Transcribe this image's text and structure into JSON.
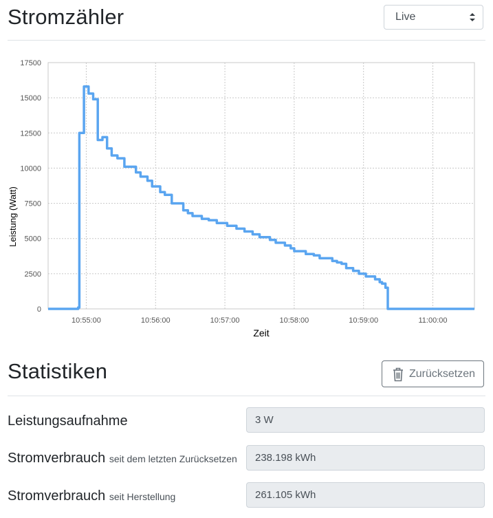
{
  "header": {
    "title": "Stromzähler",
    "mode_select": {
      "value": "Live"
    }
  },
  "chart_data": {
    "type": "line",
    "xlabel": "Zeit",
    "ylabel": "Leistung (Watt)",
    "y_ticks": [
      "0",
      "2500",
      "5000",
      "7500",
      "10000",
      "12500",
      "15000",
      "17500"
    ],
    "x_ticks": [
      "10:55:00",
      "10:56:00",
      "10:57:00",
      "10:58:00",
      "10:59:00",
      "11:00:00"
    ],
    "ylim": [
      0,
      17500
    ],
    "xlim": [
      "10:54:27",
      "11:00:36"
    ],
    "grid": true,
    "series": [
      {
        "color": "#5aa5f0",
        "step": true,
        "points": [
          [
            "10:54:27",
            0
          ],
          [
            "10:54:53",
            100
          ],
          [
            "10:54:54",
            12500
          ],
          [
            "10:54:58",
            15800
          ],
          [
            "10:55:02",
            15300
          ],
          [
            "10:55:06",
            14900
          ],
          [
            "10:55:10",
            12000
          ],
          [
            "10:55:14",
            12200
          ],
          [
            "10:55:18",
            11400
          ],
          [
            "10:55:22",
            10900
          ],
          [
            "10:55:27",
            10700
          ],
          [
            "10:55:33",
            10100
          ],
          [
            "10:55:43",
            9700
          ],
          [
            "10:55:47",
            9400
          ],
          [
            "10:55:53",
            9100
          ],
          [
            "10:55:57",
            8700
          ],
          [
            "10:56:04",
            8300
          ],
          [
            "10:56:08",
            8100
          ],
          [
            "10:56:14",
            7500
          ],
          [
            "10:56:24",
            7000
          ],
          [
            "10:56:28",
            6800
          ],
          [
            "10:56:32",
            6600
          ],
          [
            "10:56:40",
            6400
          ],
          [
            "10:56:46",
            6300
          ],
          [
            "10:56:53",
            6100
          ],
          [
            "10:57:02",
            5900
          ],
          [
            "10:57:10",
            5700
          ],
          [
            "10:57:17",
            5500
          ],
          [
            "10:57:24",
            5300
          ],
          [
            "10:57:30",
            5100
          ],
          [
            "10:57:39",
            4900
          ],
          [
            "10:57:44",
            4700
          ],
          [
            "10:57:52",
            4500
          ],
          [
            "10:57:57",
            4300
          ],
          [
            "10:58:00",
            4100
          ],
          [
            "10:58:10",
            3900
          ],
          [
            "10:58:17",
            3800
          ],
          [
            "10:58:22",
            3600
          ],
          [
            "10:58:33",
            3400
          ],
          [
            "10:58:37",
            3300
          ],
          [
            "10:58:41",
            3200
          ],
          [
            "10:58:45",
            2900
          ],
          [
            "10:58:51",
            2700
          ],
          [
            "10:58:56",
            2500
          ],
          [
            "10:59:02",
            2300
          ],
          [
            "10:59:10",
            2100
          ],
          [
            "10:59:14",
            1900
          ],
          [
            "10:59:16",
            1800
          ],
          [
            "10:59:19",
            1500
          ],
          [
            "10:59:21",
            0
          ],
          [
            "11:00:36",
            0
          ]
        ]
      }
    ]
  },
  "statistics": {
    "title": "Statistiken",
    "reset_label": "Zurücksetzen",
    "rows": [
      {
        "label": "Leistungsaufnahme",
        "sublabel": "",
        "value": "3 W"
      },
      {
        "label": "Stromverbrauch",
        "sublabel": "seit dem letzten Zurücksetzen",
        "value": "238.198 kWh"
      },
      {
        "label": "Stromverbrauch",
        "sublabel": "seit Herstellung",
        "value": "261.105 kWh"
      }
    ]
  }
}
